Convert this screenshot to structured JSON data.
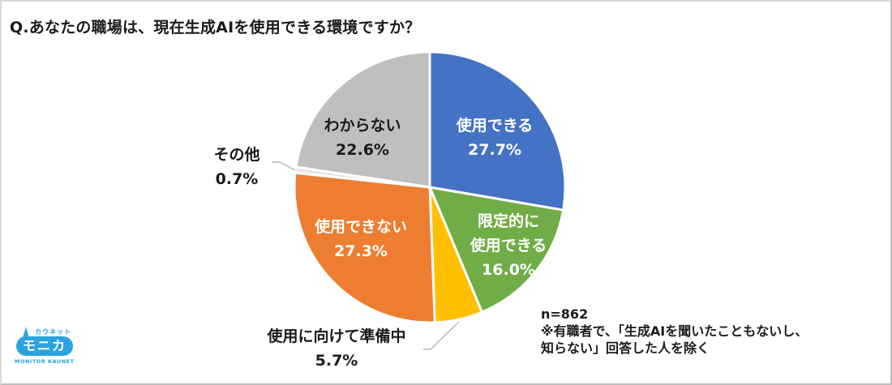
{
  "title": "Q.あなたの職場は、現在生成AIを使用できる環境ですか？",
  "note": {
    "n": "n=862",
    "line1": "※有職者で、「生成AIを聞いたこともないし、",
    "line2": "知らない」回答した人を除く"
  },
  "logo": {
    "top": "カウネット",
    "main": "モニカ",
    "bottom": "MONITOR KAUNET"
  },
  "labels": {
    "can_use": {
      "name": "使用できる",
      "value": "27.7%"
    },
    "limited": {
      "name1": "限定的に",
      "name2": "使用できる",
      "value": "16.0%"
    },
    "preparing": {
      "name": "使用に向けて準備中",
      "value": "5.7%"
    },
    "cannot": {
      "name": "使用できない",
      "value": "27.3%"
    },
    "other": {
      "name": "その他",
      "value": "0.7%"
    },
    "unknown": {
      "name": "わからない",
      "value": "22.6%"
    }
  },
  "chart_data": {
    "type": "pie",
    "title": "Q.あなたの職場は、現在生成AIを使用できる環境ですか？",
    "categories": [
      "使用できる",
      "限定的に使用できる",
      "使用に向けて準備中",
      "使用できない",
      "その他",
      "わからない"
    ],
    "values": [
      27.7,
      16.0,
      5.7,
      27.3,
      0.7,
      22.6
    ],
    "colors": [
      "#4472c4",
      "#70ad47",
      "#ffc000",
      "#ed7d31",
      "#e7e6e6",
      "#bfbfbf"
    ],
    "start_angle": "12 o'clock, clockwise",
    "annotations": [
      "n=862",
      "※有職者で、「生成AIを聞いたこともないし、知らない」回答した人を除く"
    ],
    "legend": "none (data labels on slices)"
  }
}
